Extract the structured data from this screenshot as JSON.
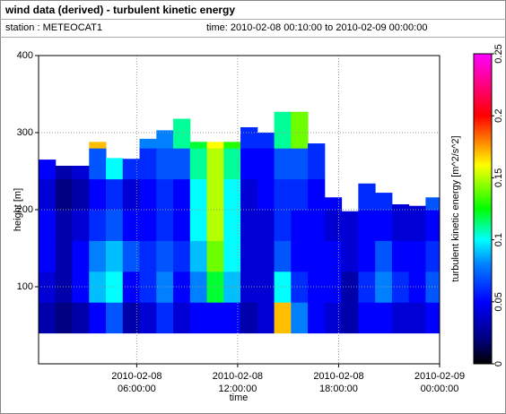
{
  "chart_data": {
    "type": "heatmap",
    "title": "wind data (derived) - turbulent kinetic energy",
    "station_label": "station : METEOCAT1",
    "time_label": "time: 2010-02-08 00:10:00 to 2010-02-09 00:00:00",
    "xlabel": "time",
    "ylabel": "height [m]",
    "zlabel": "turbulent kinetic energy [m^2/s^2]",
    "xlim": [
      "2010-02-08 00:10:00",
      "2010-02-09 00:00:00"
    ],
    "xticks": [
      {
        "value": "2010-02-08 06:00:00",
        "label": [
          "2010-02-08",
          "06:00:00"
        ]
      },
      {
        "value": "2010-02-08 12:00:00",
        "label": [
          "2010-02-08",
          "12:00:00"
        ]
      },
      {
        "value": "2010-02-08 18:00:00",
        "label": [
          "2010-02-08",
          "18:00:00"
        ]
      },
      {
        "value": "2010-02-09 00:00:00",
        "label": [
          "2010-02-09",
          "00:00:00"
        ]
      }
    ],
    "ylim": [
      0,
      400
    ],
    "yticks": [
      100,
      200,
      300,
      400
    ],
    "grid": true,
    "x": [
      "2010-02-08 00:10:00",
      "2010-02-08 01:10:00",
      "2010-02-08 02:10:00",
      "2010-02-08 03:10:00",
      "2010-02-08 04:10:00",
      "2010-02-08 05:10:00",
      "2010-02-08 06:10:00",
      "2010-02-08 07:10:00",
      "2010-02-08 08:10:00",
      "2010-02-08 09:10:00",
      "2010-02-08 10:10:00",
      "2010-02-08 11:10:00",
      "2010-02-08 12:10:00",
      "2010-02-08 13:10:00",
      "2010-02-08 14:10:00",
      "2010-02-08 15:10:00",
      "2010-02-08 16:10:00",
      "2010-02-08 17:10:00",
      "2010-02-08 18:10:00",
      "2010-02-08 19:10:00",
      "2010-02-08 20:10:00",
      "2010-02-08 21:10:00",
      "2010-02-08 22:10:00",
      "2010-02-08 23:10:00"
    ],
    "y_bins": [
      40,
      80,
      120,
      160,
      200,
      240,
      280,
      320
    ],
    "tops": [
      265,
      257,
      257,
      288,
      267,
      266,
      292,
      303,
      318,
      288,
      288,
      288,
      307,
      300,
      327,
      327,
      286,
      216,
      198,
      234,
      222,
      207,
      205,
      216
    ],
    "z": [
      [
        0.03,
        0.04,
        0.05,
        0.05,
        0.04,
        0.05,
        null
      ],
      [
        0.02,
        0.03,
        0.03,
        0.03,
        0.02,
        0.03,
        null
      ],
      [
        0.03,
        0.05,
        0.05,
        0.04,
        0.03,
        0.04,
        null
      ],
      [
        0.05,
        0.09,
        0.08,
        0.06,
        0.05,
        0.07,
        0.17
      ],
      [
        0.07,
        0.1,
        0.09,
        0.07,
        0.06,
        0.1,
        null
      ],
      [
        0.03,
        0.05,
        0.07,
        0.05,
        0.04,
        0.06,
        null
      ],
      [
        0.04,
        0.06,
        0.06,
        0.05,
        0.05,
        0.06,
        0.08
      ],
      [
        0.06,
        0.08,
        0.07,
        0.06,
        0.06,
        0.07,
        0.08
      ],
      [
        0.04,
        0.05,
        0.06,
        0.05,
        0.05,
        0.07,
        0.11
      ],
      [
        0.05,
        0.08,
        0.09,
        0.1,
        0.1,
        0.11,
        0.12
      ],
      [
        0.05,
        0.12,
        0.14,
        0.15,
        0.15,
        0.15,
        0.16
      ],
      [
        0.05,
        0.09,
        0.1,
        0.1,
        0.1,
        0.11,
        0.13
      ],
      [
        0.03,
        0.04,
        0.04,
        0.04,
        0.04,
        0.05,
        0.06
      ],
      [
        0.04,
        0.04,
        0.04,
        0.04,
        0.05,
        0.05,
        0.06
      ],
      [
        0.17,
        0.1,
        0.07,
        0.06,
        0.06,
        0.07,
        0.11
      ],
      [
        0.08,
        0.06,
        0.05,
        0.05,
        0.06,
        0.07,
        0.14
      ],
      [
        0.05,
        0.05,
        0.05,
        0.05,
        0.05,
        0.06,
        0.06
      ],
      [
        0.04,
        0.05,
        0.05,
        0.04,
        0.05,
        null,
        null
      ],
      [
        0.03,
        0.03,
        0.04,
        0.04,
        null,
        null,
        null
      ],
      [
        0.05,
        0.06,
        0.05,
        0.05,
        0.06,
        null,
        null
      ],
      [
        0.05,
        0.08,
        0.07,
        0.05,
        0.06,
        null,
        null
      ],
      [
        0.04,
        0.06,
        0.05,
        0.04,
        0.04,
        null,
        null
      ],
      [
        0.04,
        0.05,
        0.05,
        0.04,
        0.04,
        null,
        null
      ],
      [
        0.05,
        0.07,
        0.06,
        0.05,
        0.07,
        null,
        null
      ]
    ],
    "zlim": [
      0,
      0.25
    ],
    "zticks": [
      0,
      0.05,
      0.1,
      0.15,
      0.2,
      0.25
    ],
    "colorscale": [
      [
        0,
        "#000000"
      ],
      [
        0.02,
        "#000080"
      ],
      [
        0.05,
        "#0000ff"
      ],
      [
        0.08,
        "#0080ff"
      ],
      [
        0.1,
        "#00ffff"
      ],
      [
        0.125,
        "#00ff00"
      ],
      [
        0.16,
        "#ffff00"
      ],
      [
        0.2,
        "#ff0000"
      ],
      [
        0.25,
        "#ff00ff"
      ]
    ]
  }
}
